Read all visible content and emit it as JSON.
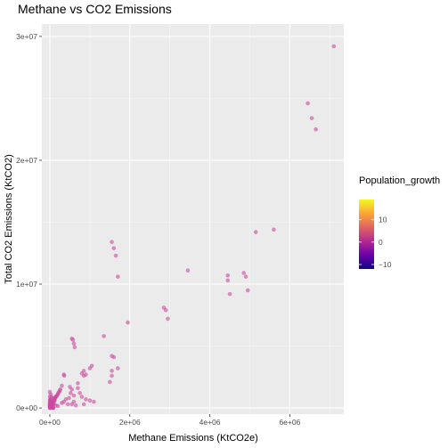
{
  "chart_data": {
    "type": "scatter",
    "title": "Methane vs CO2 Emissions",
    "xlabel": "Methane Emissions (KtCO2e)",
    "ylabel": "Total CO2 Emissions (KtCO2)",
    "xlim": [
      -200000,
      7350000
    ],
    "ylim": [
      -500000,
      31000000
    ],
    "x_ticks": [
      {
        "value": 0,
        "label": "0e+00"
      },
      {
        "value": 2000000,
        "label": "2e+06"
      },
      {
        "value": 4000000,
        "label": "4e+06"
      },
      {
        "value": 6000000,
        "label": "6e+06"
      }
    ],
    "y_ticks": [
      {
        "value": 0,
        "label": "0e+00"
      },
      {
        "value": 10000000,
        "label": "1e+07"
      },
      {
        "value": 20000000,
        "label": "2e+07"
      },
      {
        "value": 30000000,
        "label": "3e+07"
      }
    ],
    "grid": true,
    "background": "#ebebeb",
    "point_color": "#cc4aa0",
    "legend": {
      "title": "Population_growth",
      "position": "right",
      "ticks": [
        {
          "value": 10,
          "label": "10"
        },
        {
          "value": 0,
          "label": "0"
        },
        {
          "value": -10,
          "label": "−10"
        }
      ],
      "range": [
        -12,
        19
      ],
      "colors": [
        "#0d0887",
        "#6a00a8",
        "#b12a90",
        "#e16462",
        "#fca636",
        "#f0f921"
      ]
    },
    "points": [
      [
        7100000,
        29200000
      ],
      [
        6450000,
        24600000
      ],
      [
        6550000,
        23400000
      ],
      [
        6650000,
        22500000
      ],
      [
        5600000,
        14400000
      ],
      [
        5150000,
        14200000
      ],
      [
        3450000,
        11100000
      ],
      [
        4850000,
        10900000
      ],
      [
        4900000,
        10600000
      ],
      [
        4450000,
        10700000
      ],
      [
        4450000,
        10300000
      ],
      [
        4500000,
        9200000
      ],
      [
        4950000,
        9500000
      ],
      [
        2850000,
        8100000
      ],
      [
        2900000,
        7900000
      ],
      [
        2950000,
        7200000
      ],
      [
        1950000,
        6900000
      ],
      [
        1550000,
        13400000
      ],
      [
        1600000,
        12900000
      ],
      [
        1650000,
        12300000
      ],
      [
        1700000,
        10600000
      ],
      [
        1350000,
        5800000
      ],
      [
        550000,
        5600000
      ],
      [
        580000,
        5500000
      ],
      [
        600000,
        5200000
      ],
      [
        620000,
        4900000
      ],
      [
        1550000,
        4200000
      ],
      [
        1600000,
        4100000
      ],
      [
        1700000,
        3200000
      ],
      [
        1550000,
        3000000
      ],
      [
        1550000,
        2600000
      ],
      [
        1500000,
        2100000
      ],
      [
        1050000,
        3400000
      ],
      [
        1000000,
        3200000
      ],
      [
        850000,
        3000000
      ],
      [
        850000,
        2600000
      ],
      [
        900000,
        2700000
      ],
      [
        800000,
        2800000
      ],
      [
        700000,
        2000000
      ],
      [
        350000,
        2700000
      ],
      [
        360000,
        2600000
      ],
      [
        300000,
        1800000
      ],
      [
        250000,
        1400000
      ],
      [
        200000,
        1100000
      ],
      [
        150000,
        900000
      ],
      [
        100000,
        700000
      ],
      [
        50000,
        600000
      ],
      [
        500000,
        1700000
      ],
      [
        550000,
        1500000
      ],
      [
        520000,
        1200000
      ],
      [
        600000,
        1000000
      ],
      [
        480000,
        800000
      ],
      [
        400000,
        700000
      ],
      [
        350000,
        500000
      ],
      [
        300000,
        400000
      ],
      [
        450000,
        300000
      ],
      [
        600000,
        500000
      ],
      [
        700000,
        1600000
      ],
      [
        750000,
        1200000
      ],
      [
        800000,
        900000
      ],
      [
        900000,
        700000
      ],
      [
        1000000,
        600000
      ],
      [
        1100000,
        500000
      ],
      [
        850000,
        300000
      ],
      [
        650000,
        200000
      ],
      [
        550000,
        300000
      ],
      [
        0,
        1300000
      ],
      [
        20000,
        1100000
      ],
      [
        40000,
        900000
      ],
      [
        80000,
        800000
      ],
      [
        10000,
        700000
      ],
      [
        30000,
        500000
      ],
      [
        60000,
        400000
      ],
      [
        100000,
        300000
      ],
      [
        150000,
        200000
      ],
      [
        200000,
        150000
      ],
      [
        0,
        300000
      ],
      [
        10000,
        200000
      ],
      [
        20000,
        150000
      ],
      [
        30000,
        100000
      ],
      [
        40000,
        60000
      ],
      [
        50000,
        30000
      ],
      [
        60000,
        20000
      ],
      [
        70000,
        10000
      ],
      [
        80000,
        5000
      ],
      [
        90000,
        0
      ],
      [
        0,
        0
      ],
      [
        5000,
        5000
      ],
      [
        10000,
        10000
      ],
      [
        15000,
        40000
      ],
      [
        25000,
        80000
      ],
      [
        35000,
        120000
      ],
      [
        45000,
        160000
      ],
      [
        55000,
        240000
      ],
      [
        65000,
        280000
      ],
      [
        75000,
        350000
      ],
      [
        85000,
        420000
      ],
      [
        95000,
        480000
      ],
      [
        110000,
        550000
      ],
      [
        120000,
        620000
      ],
      [
        130000,
        760000
      ],
      [
        140000,
        840000
      ],
      [
        160000,
        950000
      ],
      [
        180000,
        1000000
      ],
      [
        210000,
        1200000
      ],
      [
        230000,
        1300000
      ],
      [
        260000,
        1500000
      ],
      [
        0,
        80000
      ],
      [
        0,
        120000
      ],
      [
        0,
        180000
      ],
      [
        0,
        400000
      ],
      [
        0,
        600000
      ],
      [
        0,
        900000
      ],
      [
        5000,
        250000
      ],
      [
        5000,
        450000
      ],
      [
        5000,
        650000
      ],
      [
        15000,
        350000
      ],
      [
        15000,
        550000
      ]
    ]
  }
}
